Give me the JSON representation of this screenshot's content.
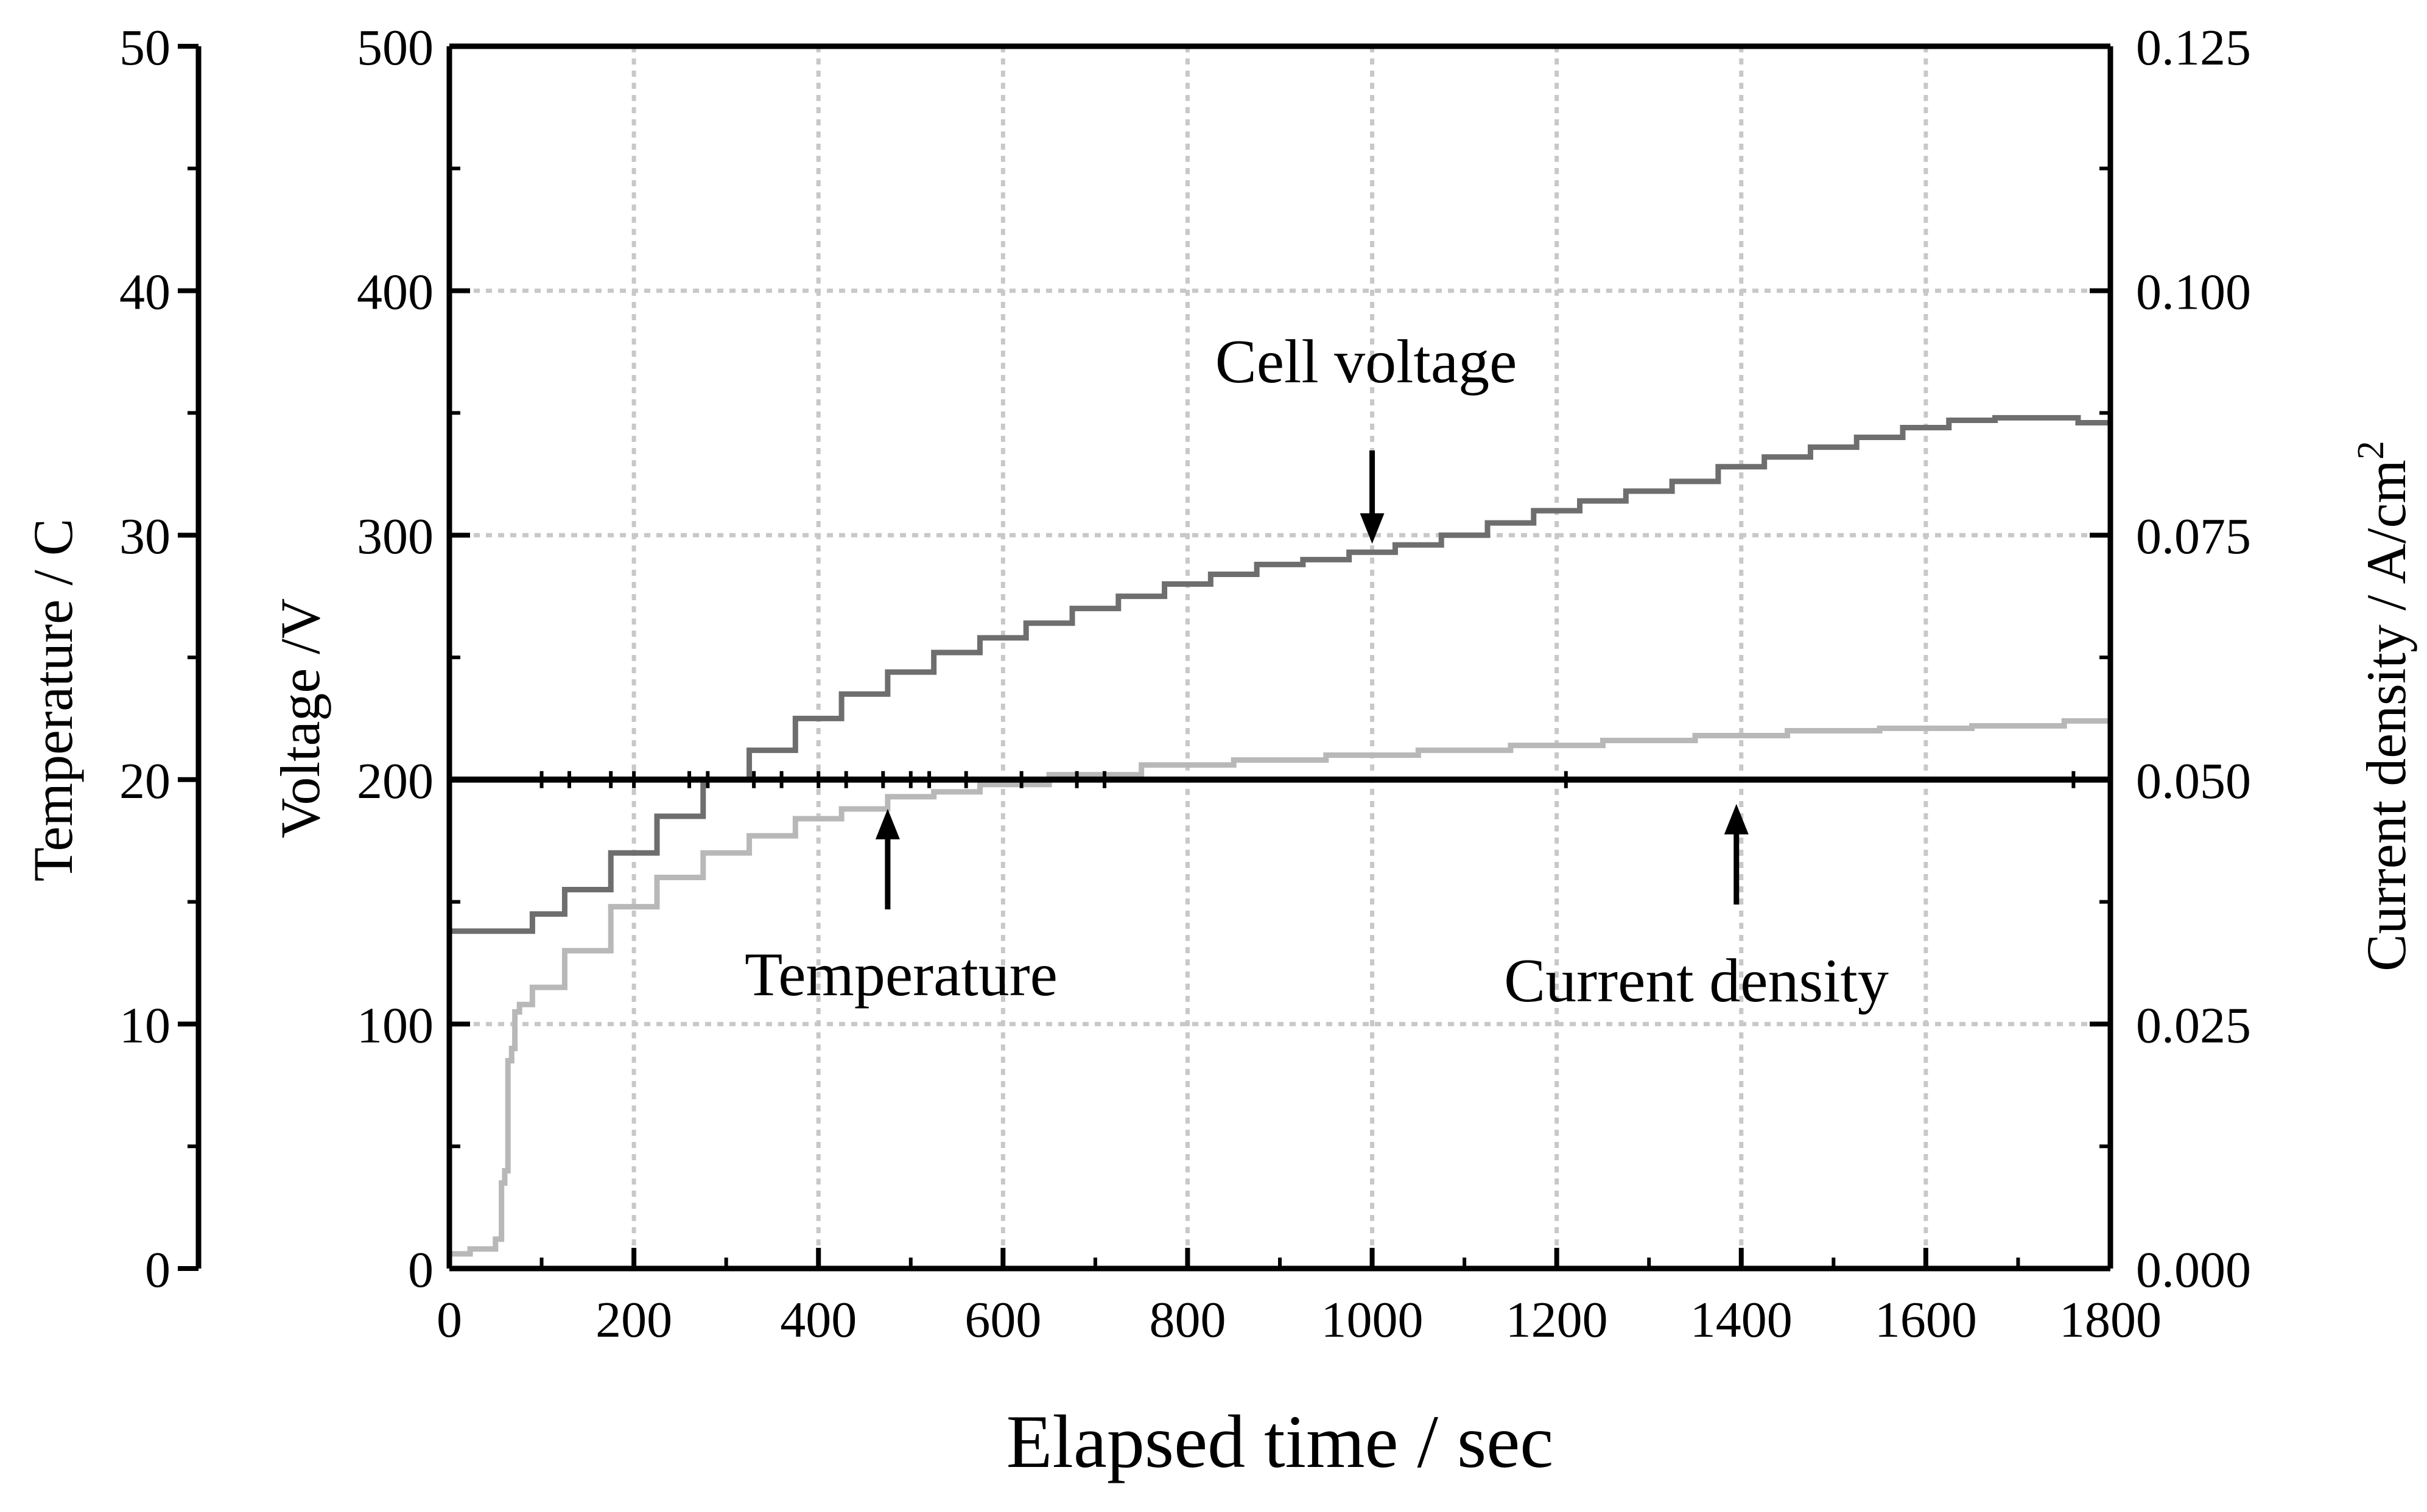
{
  "chart_data": {
    "type": "line",
    "xlabel": "Elapsed time / sec",
    "xlim": [
      0,
      1800
    ],
    "x_ticks": [
      "0",
      "200",
      "400",
      "600",
      "800",
      "1000",
      "1200",
      "1400",
      "1600",
      "1800"
    ],
    "grid": true,
    "axes": {
      "voltage": {
        "label": "Voltage /V",
        "lim": [
          0,
          500
        ],
        "ticks": [
          "0",
          "100",
          "200",
          "300",
          "400",
          "500"
        ]
      },
      "temperature": {
        "label": "Temperature / C",
        "lim": [
          0,
          50
        ],
        "ticks": [
          "0",
          "10",
          "20",
          "30",
          "40",
          "50"
        ]
      },
      "current": {
        "label": "Current density / A/cm",
        "label_superscript": "2",
        "lim": [
          0,
          0.125
        ],
        "ticks": [
          "0.000",
          "0.025",
          "0.050",
          "0.075",
          "0.100",
          "0.125"
        ]
      }
    },
    "series": [
      {
        "name": "Cell voltage",
        "axis": "voltage",
        "color": "#6e6e6e",
        "points": [
          [
            0,
            138
          ],
          [
            80,
            138
          ],
          [
            100,
            145
          ],
          [
            150,
            155
          ],
          [
            200,
            170
          ],
          [
            250,
            185
          ],
          [
            300,
            200
          ],
          [
            350,
            212
          ],
          [
            400,
            225
          ],
          [
            450,
            235
          ],
          [
            500,
            244
          ],
          [
            550,
            252
          ],
          [
            600,
            258
          ],
          [
            650,
            264
          ],
          [
            700,
            270
          ],
          [
            750,
            275
          ],
          [
            800,
            280
          ],
          [
            850,
            284
          ],
          [
            900,
            288
          ],
          [
            950,
            290
          ],
          [
            1000,
            293
          ],
          [
            1050,
            296
          ],
          [
            1100,
            300
          ],
          [
            1150,
            305
          ],
          [
            1200,
            310
          ],
          [
            1250,
            314
          ],
          [
            1300,
            318
          ],
          [
            1350,
            322
          ],
          [
            1400,
            328
          ],
          [
            1450,
            332
          ],
          [
            1500,
            336
          ],
          [
            1550,
            340
          ],
          [
            1600,
            344
          ],
          [
            1650,
            347
          ],
          [
            1700,
            348
          ],
          [
            1760,
            348
          ],
          [
            1770,
            346
          ],
          [
            1800,
            346
          ]
        ]
      },
      {
        "name": "Temperature",
        "axis": "temperature",
        "color": "#b8b8b8",
        "points": [
          [
            0,
            0.6
          ],
          [
            45,
            0.8
          ],
          [
            55,
            1.2
          ],
          [
            58,
            3.5
          ],
          [
            62,
            4
          ],
          [
            65,
            8.5
          ],
          [
            70,
            9
          ],
          [
            72,
            10.5
          ],
          [
            80,
            10.8
          ],
          [
            100,
            11.5
          ],
          [
            150,
            13
          ],
          [
            200,
            14.8
          ],
          [
            250,
            16
          ],
          [
            300,
            17
          ],
          [
            350,
            17.7
          ],
          [
            400,
            18.4
          ],
          [
            450,
            18.8
          ],
          [
            500,
            19.3
          ],
          [
            550,
            19.5
          ],
          [
            600,
            19.8
          ],
          [
            700,
            20.2
          ],
          [
            800,
            20.6
          ],
          [
            900,
            20.8
          ],
          [
            1000,
            21
          ],
          [
            1100,
            21.2
          ],
          [
            1200,
            21.4
          ],
          [
            1300,
            21.6
          ],
          [
            1400,
            21.8
          ],
          [
            1500,
            22
          ],
          [
            1600,
            22.1
          ],
          [
            1700,
            22.2
          ],
          [
            1800,
            22.4
          ]
        ]
      },
      {
        "name": "Current density",
        "axis": "current",
        "color": "#000000",
        "constant": 0.05
      }
    ],
    "annotations": [
      {
        "text": "Cell voltage",
        "points_to": [
          1000,
          293
        ],
        "axis": "voltage"
      },
      {
        "text": "Temperature",
        "points_to": [
          475,
          19.2
        ],
        "axis": "temperature"
      },
      {
        "text": "Current density",
        "points_to": [
          1400,
          0.05
        ],
        "axis": "current"
      }
    ]
  }
}
